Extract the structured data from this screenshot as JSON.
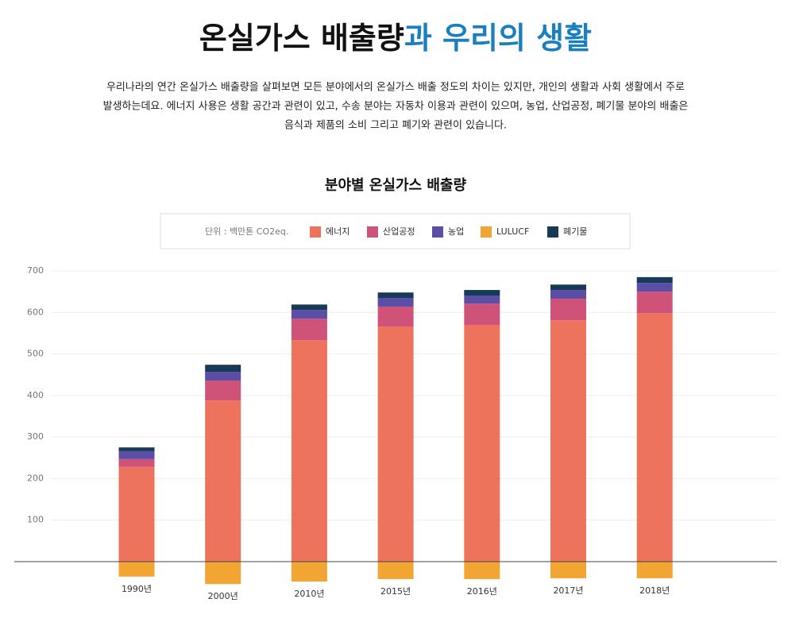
{
  "header": {
    "title": [
      "온실가스 배출량",
      "과 우리의 생활"
    ],
    "description": [
      "우리나라의 연간 온실가스 배출량을 살펴보면 모든 분야에서의 온실가스 배출 정도의 차이는 있지만, 개인의 생활과 사회 생활에서 주로",
      "발생하는데요. 에너지 사용은 생활 공간과 관련이 있고, 수송 분야는 자동차 이용과 관련이 있으며, 농업, 산업공정, 폐기물 분야의 배출은",
      "음식과 제품의 소비 그리고 폐기와 관련이 있습니다."
    ]
  },
  "chart_data": {
    "type": "stacked_bar",
    "title": "분야별 온실가스 배출량",
    "unit_label": "단위 : 백만톤 CO2eq.",
    "categories": [
      "1990년",
      "2000년",
      "2010년",
      "2015년",
      "2016년",
      "2017년",
      "2018년"
    ],
    "series": [
      {
        "name": "에너지",
        "color": "#ee735c",
        "values": [
          228,
          388,
          533,
          566,
          570,
          581,
          598
        ]
      },
      {
        "name": "산업공정",
        "color": "#cf5378",
        "values": [
          19,
          48,
          52,
          48,
          51,
          52,
          52
        ]
      },
      {
        "name": "농업",
        "color": "#5b4ea6",
        "values": [
          19,
          21,
          21,
          21,
          19,
          21,
          21
        ]
      },
      {
        "name": "LULUCF",
        "color": "#f2a533",
        "values": [
          -36,
          -54,
          -48,
          -42,
          -42,
          -40,
          -40
        ]
      },
      {
        "name": "폐기물",
        "color": "#173a56",
        "values": [
          9,
          17,
          13,
          13,
          14,
          13,
          14
        ]
      }
    ],
    "ylim": [
      -60,
      700
    ],
    "yticks": [
      100,
      200,
      300,
      400,
      500,
      600,
      700
    ],
    "grid": true
  }
}
